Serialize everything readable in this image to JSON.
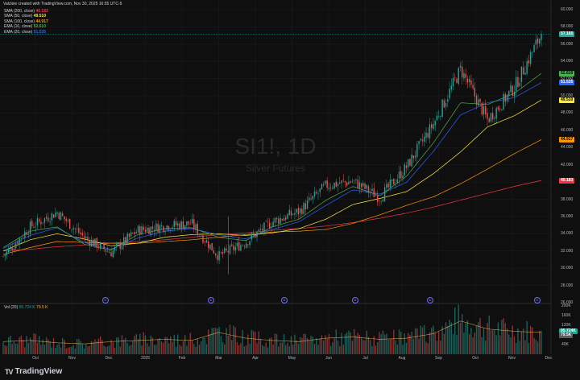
{
  "header": {
    "title": "Valcleie created with TradingView.com, Nov 30, 2025 16:55 UTC-5",
    "indicators": [
      {
        "label": "SMA (200, close)",
        "value": "40.183",
        "color": "#f23645"
      },
      {
        "label": "SMA (50, close)",
        "value": "49.510",
        "color": "#ffeb3b"
      },
      {
        "label": "SMA (100, close)",
        "value": "44.917",
        "color": "#ff9800"
      },
      {
        "label": "EMA (10, close)",
        "value": "52.610",
        "color": "#4caf50"
      },
      {
        "label": "EMA (20, close)",
        "value": "51.535",
        "color": "#2962ff"
      }
    ]
  },
  "watermark": {
    "symbol": "SI1!, 1D",
    "name": "Silver Futures"
  },
  "volume_legend": {
    "label": "Vol (20)",
    "v1": "95.724 K",
    "v2": "79.5 K"
  },
  "branding": {
    "text": "TradingView",
    "logo": "TV"
  },
  "price_tags": [
    {
      "text": "57.165",
      "value": 57.165,
      "bg": "#26a69a",
      "fg": "#ffffff"
    },
    {
      "text": "52.610",
      "value": 52.61,
      "bg": "#4caf50",
      "fg": "#000000"
    },
    {
      "text": "51.535",
      "value": 51.535,
      "bg": "#2962ff",
      "fg": "#ffffff"
    },
    {
      "text": "49.510",
      "value": 49.51,
      "bg": "#ffeb3b",
      "fg": "#000000"
    },
    {
      "text": "44.917",
      "value": 44.917,
      "bg": "#ff9800",
      "fg": "#000000"
    },
    {
      "text": "40.183",
      "value": 40.183,
      "bg": "#f23645",
      "fg": "#ffffff"
    }
  ],
  "volume_tags": [
    {
      "text": "95.724K",
      "value": 95.724,
      "bg": "#26a69a",
      "fg": "#ffffff"
    },
    {
      "text": "79.5K",
      "value": 79.5,
      "bg": "#5d5d5d",
      "fg": "#ffffff"
    }
  ],
  "event_markers": [
    "D",
    "D",
    "D",
    "D",
    "D",
    "D"
  ],
  "chart_data": {
    "type": "candlestick",
    "title": "SI1!, 1D",
    "subtitle": "Silver Futures",
    "y_ticks": [
      "60.000",
      "58.000",
      "56.000",
      "54.000",
      "52.000",
      "50.000",
      "48.000",
      "46.000",
      "44.000",
      "42.000",
      "40.000",
      "38.000",
      "36.000",
      "34.000",
      "32.000",
      "30.000",
      "28.000",
      "26.000"
    ],
    "ylim": [
      26,
      60
    ],
    "x_ticks": [
      "Oct",
      "Nov",
      "Dec",
      "2025",
      "Feb",
      "Mar",
      "Apr",
      "May",
      "Jun",
      "Jul",
      "Aug",
      "Sep",
      "Oct",
      "Nov",
      "Dec"
    ],
    "volume_ticks": [
      "200K",
      "160K",
      "120K",
      "80K",
      "40K"
    ],
    "volume_ylim": [
      0,
      200
    ],
    "grid": true,
    "series": [
      {
        "name": "SMA (200, close)",
        "color": "#f23645",
        "points": [
          32.0,
          32.2,
          32.5,
          32.7,
          32.9,
          33.1,
          33.3,
          33.6,
          33.9,
          34.1,
          34.4,
          34.6,
          34.9,
          35.3,
          35.8,
          36.4,
          37.1,
          37.9,
          38.7,
          39.5,
          40.183
        ]
      },
      {
        "name": "SMA (100, close)",
        "color": "#ff9800",
        "points": [
          31.6,
          32.4,
          33.1,
          33.0,
          32.9,
          32.9,
          33.1,
          33.3,
          33.6,
          33.9,
          34.2,
          34.3,
          34.5,
          35.2,
          36.2,
          37.3,
          38.3,
          39.8,
          41.5,
          43.3,
          44.917
        ]
      },
      {
        "name": "SMA (50, close)",
        "color": "#ffeb3b",
        "points": [
          32.0,
          33.3,
          34.0,
          33.4,
          32.6,
          32.9,
          33.6,
          33.9,
          34.0,
          33.8,
          34.1,
          34.6,
          35.7,
          37.4,
          38.1,
          38.9,
          41.0,
          43.5,
          46.4,
          47.7,
          49.51
        ]
      },
      {
        "name": "EMA (20, close)",
        "color": "#2962ff",
        "points": [
          32.3,
          33.8,
          34.7,
          33.0,
          32.2,
          33.5,
          34.3,
          34.6,
          33.9,
          33.4,
          34.5,
          35.4,
          37.3,
          39.1,
          38.6,
          40.0,
          43.6,
          47.8,
          49.2,
          49.8,
          51.535
        ]
      },
      {
        "name": "EMA (10, close)",
        "color": "#4caf50",
        "points": [
          32.4,
          34.3,
          34.8,
          32.8,
          32.1,
          33.9,
          34.6,
          34.7,
          33.6,
          33.2,
          34.8,
          35.7,
          37.9,
          39.5,
          38.4,
          40.7,
          44.6,
          49.2,
          49.0,
          50.3,
          52.61
        ]
      }
    ],
    "candles_close_anchor": [
      31.4,
      34.8,
      36.5,
      33.6,
      31.8,
      34.4,
      34.9,
      35.2,
      31.4,
      33.0,
      35.4,
      36.6,
      39.6,
      40.1,
      38.2,
      41.8,
      46.8,
      53.1,
      47.2,
      51.0,
      57.165
    ],
    "last_close": 57.165,
    "volume": {
      "name": "Vol (20)",
      "ma_last": 79.5,
      "last": 95.724,
      "anchors": [
        55,
        60,
        50,
        45,
        55,
        60,
        65,
        60,
        95,
        70,
        60,
        55,
        70,
        75,
        65,
        70,
        90,
        145,
        110,
        100,
        95
      ]
    }
  }
}
